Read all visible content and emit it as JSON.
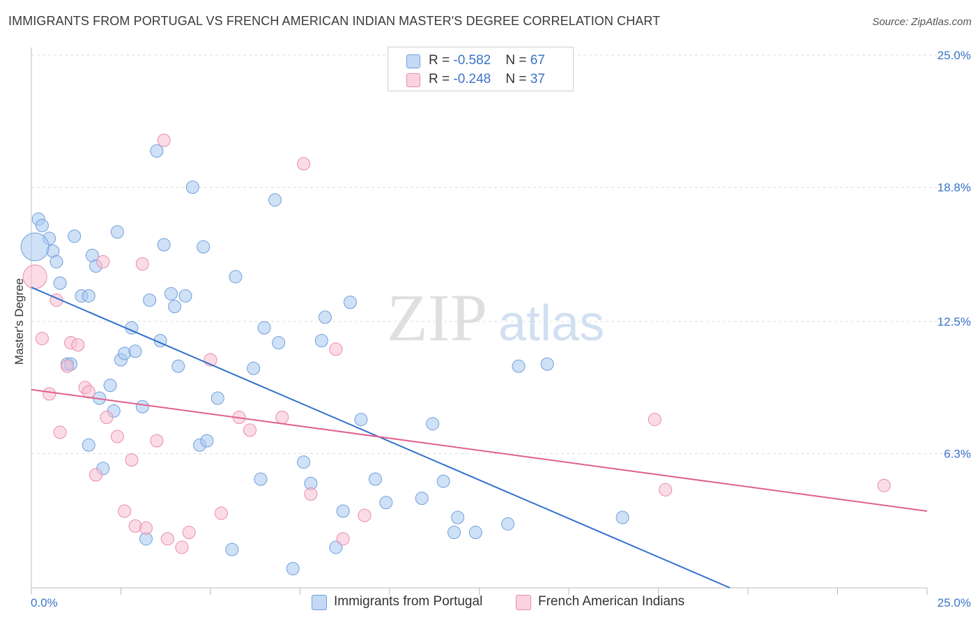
{
  "header": {
    "title": "IMMIGRANTS FROM PORTUGAL VS FRENCH AMERICAN INDIAN MASTER'S DEGREE CORRELATION CHART",
    "source": "Source: ZipAtlas.com"
  },
  "watermark": {
    "part1": "ZIP",
    "part2": "atlas"
  },
  "legend": {
    "rows": [
      {
        "r_label": "R = ",
        "r_value": "-0.582",
        "n_label": "N = ",
        "n_value": "67"
      },
      {
        "r_label": "R = ",
        "r_value": "-0.248",
        "n_label": "N = ",
        "n_value": "37"
      }
    ]
  },
  "chart_data": {
    "type": "scatter",
    "title": "IMMIGRANTS FROM PORTUGAL VS FRENCH AMERICAN INDIAN MASTER'S DEGREE CORRELATION CHART",
    "xlabel": "",
    "ylabel": "Master's Degree",
    "xlim": [
      0,
      25
    ],
    "ylim": [
      0,
      25
    ],
    "x_tick_labels": [
      "0.0%",
      "25.0%"
    ],
    "y_ticks": [
      6.3,
      12.5,
      18.8,
      25.0
    ],
    "y_tick_labels": [
      "6.3%",
      "12.5%",
      "18.8%",
      "25.0%"
    ],
    "grid": true,
    "legend_position": "top-center",
    "series": [
      {
        "name": "Immigrants from Portugal",
        "color": "#a8c8f0",
        "edge_color": "#6f9fdc",
        "line_color": "#3170cc",
        "trend": [
          [
            0,
            14.1
          ],
          [
            19.5,
            0
          ]
        ],
        "points": [
          [
            0.2,
            17.3
          ],
          [
            0.3,
            17.0
          ],
          [
            0.5,
            16.4
          ],
          [
            0.6,
            15.8
          ],
          [
            0.7,
            15.3
          ],
          [
            0.8,
            14.3
          ],
          [
            1.0,
            10.5
          ],
          [
            1.1,
            10.5
          ],
          [
            1.2,
            16.5
          ],
          [
            1.4,
            13.7
          ],
          [
            1.6,
            13.7
          ],
          [
            1.7,
            15.6
          ],
          [
            1.8,
            15.1
          ],
          [
            1.9,
            8.9
          ],
          [
            2.0,
            5.6
          ],
          [
            2.2,
            9.5
          ],
          [
            2.3,
            8.3
          ],
          [
            2.4,
            16.7
          ],
          [
            2.5,
            10.7
          ],
          [
            2.6,
            11.0
          ],
          [
            2.8,
            12.2
          ],
          [
            2.9,
            11.1
          ],
          [
            3.1,
            8.5
          ],
          [
            3.2,
            2.3
          ],
          [
            3.3,
            13.5
          ],
          [
            3.5,
            20.5
          ],
          [
            3.6,
            11.6
          ],
          [
            3.7,
            16.1
          ],
          [
            3.9,
            13.8
          ],
          [
            4.0,
            13.2
          ],
          [
            4.1,
            10.4
          ],
          [
            4.3,
            13.7
          ],
          [
            4.5,
            18.8
          ],
          [
            4.7,
            6.7
          ],
          [
            4.8,
            16.0
          ],
          [
            4.9,
            6.9
          ],
          [
            5.2,
            8.9
          ],
          [
            5.6,
            1.8
          ],
          [
            5.7,
            14.6
          ],
          [
            6.2,
            10.3
          ],
          [
            6.4,
            5.1
          ],
          [
            6.5,
            12.2
          ],
          [
            6.8,
            18.2
          ],
          [
            6.9,
            11.5
          ],
          [
            7.3,
            0.9
          ],
          [
            7.6,
            5.9
          ],
          [
            7.8,
            4.9
          ],
          [
            8.1,
            11.6
          ],
          [
            8.2,
            12.7
          ],
          [
            8.5,
            1.9
          ],
          [
            8.7,
            3.6
          ],
          [
            8.9,
            13.4
          ],
          [
            9.2,
            7.9
          ],
          [
            9.6,
            5.1
          ],
          [
            9.9,
            4.0
          ],
          [
            10.9,
            4.2
          ],
          [
            11.2,
            7.7
          ],
          [
            11.5,
            5.0
          ],
          [
            11.8,
            2.6
          ],
          [
            11.9,
            3.3
          ],
          [
            12.4,
            2.6
          ],
          [
            13.3,
            3.0
          ],
          [
            13.6,
            10.4
          ],
          [
            14.4,
            10.5
          ],
          [
            16.5,
            3.3
          ],
          [
            0.1,
            16.0
          ],
          [
            1.6,
            6.7
          ]
        ]
      },
      {
        "name": "French American Indians",
        "color": "#f7bfd1",
        "edge_color": "#e98bab",
        "line_color": "#e0608c",
        "trend": [
          [
            0,
            9.3
          ],
          [
            25,
            3.6
          ]
        ],
        "points": [
          [
            0.1,
            14.6
          ],
          [
            0.3,
            11.7
          ],
          [
            0.5,
            9.1
          ],
          [
            0.7,
            13.5
          ],
          [
            0.8,
            7.3
          ],
          [
            1.0,
            10.4
          ],
          [
            1.1,
            11.5
          ],
          [
            1.3,
            11.4
          ],
          [
            1.5,
            9.4
          ],
          [
            1.6,
            9.2
          ],
          [
            1.8,
            5.3
          ],
          [
            2.0,
            15.3
          ],
          [
            2.1,
            8.0
          ],
          [
            2.4,
            7.1
          ],
          [
            2.6,
            3.6
          ],
          [
            2.8,
            6.0
          ],
          [
            2.9,
            2.9
          ],
          [
            3.1,
            15.2
          ],
          [
            3.2,
            2.8
          ],
          [
            3.5,
            6.9
          ],
          [
            3.7,
            21.0
          ],
          [
            3.8,
            2.3
          ],
          [
            4.2,
            1.9
          ],
          [
            4.4,
            2.6
          ],
          [
            5.0,
            10.7
          ],
          [
            5.3,
            3.5
          ],
          [
            5.8,
            8.0
          ],
          [
            6.1,
            7.4
          ],
          [
            7.0,
            8.0
          ],
          [
            7.6,
            19.9
          ],
          [
            7.8,
            4.4
          ],
          [
            8.5,
            11.2
          ],
          [
            8.7,
            2.3
          ],
          [
            9.3,
            3.4
          ],
          [
            17.4,
            7.9
          ],
          [
            17.7,
            4.6
          ],
          [
            23.8,
            4.8
          ]
        ]
      }
    ]
  }
}
